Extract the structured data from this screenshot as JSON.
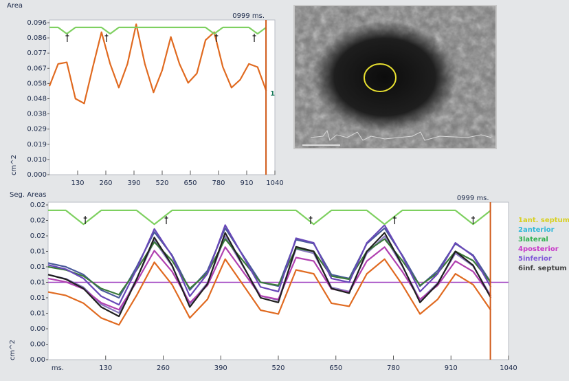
{
  "chart_data": [
    {
      "type": "line",
      "title": "Area",
      "cursor_label": "0999 ms.",
      "cursor": 999,
      "y_label": "cm^2",
      "annotation": "1",
      "xlim": [
        0,
        1040
      ],
      "xticks": [
        130,
        260,
        390,
        520,
        650,
        780,
        910,
        1040
      ],
      "ylim": [
        0,
        0.096
      ],
      "yticks": [
        {
          "value": 0,
          "label": "0.000"
        },
        {
          "value": 0.0096,
          "label": "0.010"
        },
        {
          "value": 0.0192,
          "label": "0.019"
        },
        {
          "value": 0.0288,
          "label": "0.029"
        },
        {
          "value": 0.0384,
          "label": "0.038"
        },
        {
          "value": 0.048,
          "label": "0.048"
        },
        {
          "value": 0.0576,
          "label": "0.058"
        },
        {
          "value": 0.0672,
          "label": "0.067"
        },
        {
          "value": 0.0768,
          "label": "0.077"
        },
        {
          "value": 0.0864,
          "label": "0.086"
        },
        {
          "value": 0.096,
          "label": "0.096"
        }
      ],
      "markers": [
        82,
        263,
        770,
        945
      ],
      "x": [
        0,
        40,
        80,
        120,
        160,
        200,
        240,
        280,
        320,
        360,
        400,
        440,
        480,
        520,
        560,
        600,
        640,
        680,
        720,
        760,
        800,
        840,
        880,
        920,
        960,
        1000
      ],
      "series": [
        {
          "color": "#e06a20",
          "values": [
            0.056,
            0.07,
            0.071,
            0.048,
            0.045,
            0.068,
            0.09,
            0.07,
            0.055,
            0.07,
            0.095,
            0.07,
            0.052,
            0.066,
            0.087,
            0.07,
            0.058,
            0.064,
            0.085,
            0.09,
            0.068,
            0.055,
            0.06,
            0.07,
            0.068,
            0.053
          ]
        },
        {
          "color": "#7ed060",
          "values": [
            0.093,
            0.093,
            0.089,
            0.093,
            0.093,
            0.093,
            0.093,
            0.089,
            0.093,
            0.093,
            0.093,
            0.093,
            0.093,
            0.093,
            0.093,
            0.093,
            0.093,
            0.093,
            0.093,
            0.089,
            0.093,
            0.093,
            0.093,
            0.093,
            0.089,
            0.093
          ]
        }
      ]
    },
    {
      "type": "line",
      "title": "Seg. Areas",
      "cursor_label": "0999 ms.",
      "cursor": 999,
      "y_label": "cm^2",
      "x_unit": "ms.",
      "hline": 0.01,
      "hline_color": "#a040c0",
      "xlim": [
        0,
        1040
      ],
      "xticks": [
        130,
        260,
        390,
        520,
        650,
        780,
        910,
        1040
      ],
      "ylim": [
        0,
        0.02
      ],
      "yticks": [
        {
          "value": 0,
          "label": "0.00"
        },
        {
          "value": 0.002,
          "label": "0.00"
        },
        {
          "value": 0.004,
          "label": "0.00"
        },
        {
          "value": 0.006,
          "label": "0.01"
        },
        {
          "value": 0.008,
          "label": "0.01"
        },
        {
          "value": 0.01,
          "label": "0.01"
        },
        {
          "value": 0.012,
          "label": "0.01"
        },
        {
          "value": 0.014,
          "label": "0.01"
        },
        {
          "value": 0.016,
          "label": "0.02"
        },
        {
          "value": 0.018,
          "label": "0.02"
        },
        {
          "value": 0.02,
          "label": "0.02"
        }
      ],
      "markers": [
        84,
        267,
        593,
        783,
        960
      ],
      "x": [
        0,
        40,
        80,
        120,
        160,
        200,
        240,
        280,
        320,
        360,
        400,
        440,
        480,
        520,
        560,
        600,
        640,
        680,
        720,
        760,
        800,
        840,
        880,
        920,
        960,
        1000
      ],
      "series": [
        {
          "name": "1ant. septum",
          "color": "#8a7ac0",
          "legend_color": "#d8d020",
          "values": [
            0.011,
            0.01045,
            0.00935,
            0.00715,
            0.00605,
            0.01045,
            0.0154,
            0.0121,
            0.00715,
            0.0099,
            0.01595,
            0.0121,
            0.00825,
            0.0077,
            0.0143,
            0.01375,
            0.00935,
            0.0088,
            0.01375,
            0.01595,
            0.0121,
            0.0077,
            0.0099,
            0.01375,
            0.0121,
            0.00825
          ]
        },
        {
          "name": "2anterior",
          "color": "#4a5a9a",
          "legend_color": "#30b8d8",
          "values": [
            0.0125,
            0.012,
            0.011,
            0.009,
            0.008,
            0.012,
            0.0165,
            0.0135,
            0.009,
            0.0115,
            0.017,
            0.0135,
            0.01,
            0.0095,
            0.0155,
            0.015,
            0.011,
            0.0105,
            0.015,
            0.017,
            0.0135,
            0.0095,
            0.0115,
            0.015,
            0.0135,
            0.01
          ]
        },
        {
          "name": "3lateral",
          "color": "#3a7a3a",
          "legend_color": "#30b050",
          "values": [
            0.012,
            0.0116,
            0.0108,
            0.0092,
            0.0084,
            0.0116,
            0.0152,
            0.0128,
            0.0092,
            0.0112,
            0.0156,
            0.0128,
            0.01,
            0.0096,
            0.0144,
            0.014,
            0.0108,
            0.0104,
            0.014,
            0.0156,
            0.0128,
            0.0096,
            0.0112,
            0.014,
            0.0128,
            0.01
          ]
        },
        {
          "name": "4posterior",
          "color": "#b040b0",
          "legend_color": "#c838c8",
          "values": [
            0.0105,
            0.01005,
            0.00915,
            0.00735,
            0.00645,
            0.01005,
            0.0141,
            0.0114,
            0.00735,
            0.0096,
            0.01455,
            0.0114,
            0.00825,
            0.0078,
            0.0132,
            0.01275,
            0.00915,
            0.0087,
            0.01275,
            0.01455,
            0.0114,
            0.0078,
            0.0096,
            0.01275,
            0.0114,
            0.00825
          ]
        },
        {
          "name": "5inferior",
          "color": "#6848b8",
          "legend_color": "#8058d8",
          "values": [
            0.01225,
            0.0117,
            0.0105,
            0.0082,
            0.0071,
            0.0117,
            0.0169,
            0.0134,
            0.0082,
            0.0111,
            0.0174,
            0.0134,
            0.0094,
            0.0088,
            0.0157,
            0.0151,
            0.0105,
            0.01,
            0.0151,
            0.0174,
            0.0134,
            0.0088,
            0.0111,
            0.0151,
            0.0134,
            0.0094
          ]
        },
        {
          "name": "6inf. septum",
          "color": "#202020",
          "legend_color": "#404040",
          "values": [
            0.011,
            0.0104,
            0.0092,
            0.0068,
            0.0056,
            0.0104,
            0.0158,
            0.0122,
            0.0068,
            0.0098,
            0.0164,
            0.0122,
            0.008,
            0.0074,
            0.0146,
            0.014,
            0.0092,
            0.0086,
            0.014,
            0.0164,
            0.0122,
            0.0074,
            0.0098,
            0.014,
            0.0122,
            0.008
          ]
        },
        {
          "color": "#e06a20",
          "values": [
            0.00875,
            0.0083,
            0.0073,
            0.0054,
            0.0045,
            0.0083,
            0.0126,
            0.0097,
            0.0054,
            0.0078,
            0.013,
            0.0097,
            0.0064,
            0.0059,
            0.0116,
            0.0111,
            0.0073,
            0.0069,
            0.0111,
            0.013,
            0.0097,
            0.0059,
            0.0078,
            0.0111,
            0.0097,
            0.0064
          ]
        },
        {
          "color": "#7ed060",
          "values": [
            0.0193,
            0.0193,
            0.0175,
            0.0193,
            0.0193,
            0.0193,
            0.0175,
            0.0193,
            0.0193,
            0.0193,
            0.0193,
            0.0193,
            0.0193,
            0.0193,
            0.0193,
            0.0175,
            0.0193,
            0.0193,
            0.0193,
            0.0175,
            0.0193,
            0.0193,
            0.0193,
            0.0193,
            0.0175,
            0.0193
          ]
        }
      ]
    }
  ]
}
